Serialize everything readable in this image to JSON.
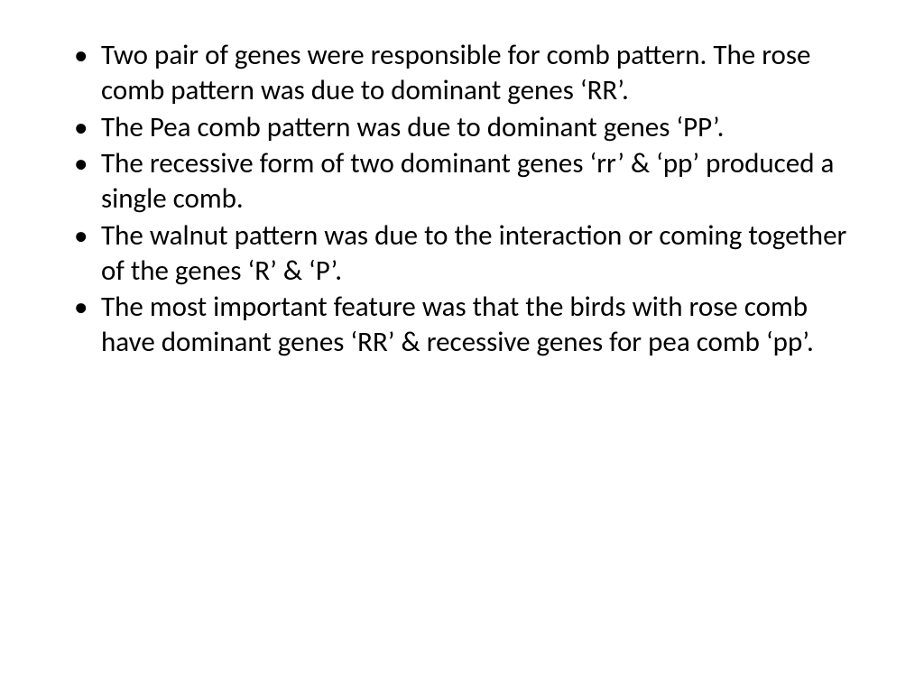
{
  "slide": {
    "background_color": "#ffffff",
    "text_color": "#000000",
    "font_family": "Calibri, Arial, sans-serif",
    "font_size_pt": 24,
    "bullets": [
      "Two pair of genes were responsible for comb pattern. The rose comb pattern was due to dominant genes ‘RR’.",
      "The Pea comb pattern was due to dominant genes ‘PP’.",
      "The recessive form of two dominant genes ‘rr’ & ‘pp’ produced a single comb.",
      "The walnut pattern was due to the interaction or coming together of the genes ‘R’ & ‘P’.",
      "The most important feature was that the birds with rose comb have dominant genes ‘RR’ & recessive genes for pea comb  ‘pp’."
    ]
  }
}
